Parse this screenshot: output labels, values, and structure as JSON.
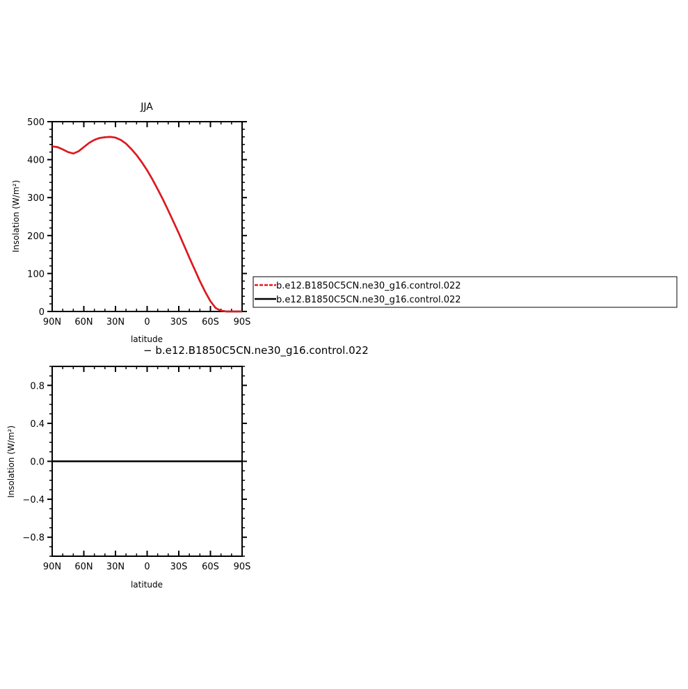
{
  "chart_data": [
    {
      "type": "line",
      "title": "JJA",
      "xlabel": "latitude",
      "ylabel": "Insolation (W/m²)",
      "x_tick_labels": [
        "90N",
        "60N",
        "30N",
        "0",
        "30S",
        "60S",
        "90S"
      ],
      "x_tick_values": [
        90,
        60,
        30,
        0,
        -30,
        -60,
        -90
      ],
      "xlim": [
        90,
        -90
      ],
      "ylim": [
        0,
        500
      ],
      "y_tick_labels": [
        "0",
        "100",
        "200",
        "300",
        "400",
        "500"
      ],
      "y_tick_values": [
        0,
        100,
        200,
        300,
        400,
        500
      ],
      "series": [
        {
          "name": "b.e12.B1850C5CN.ne30_g16.control.022",
          "color": "#e8161d",
          "style": "dashed",
          "x": [
            90,
            85,
            80,
            75,
            70,
            65,
            60,
            55,
            50,
            45,
            40,
            35,
            30,
            25,
            20,
            15,
            10,
            5,
            0,
            -5,
            -10,
            -15,
            -20,
            -25,
            -30,
            -35,
            -40,
            -45,
            -50,
            -55,
            -60,
            -65,
            -70,
            -75,
            -80,
            -85,
            -90
          ],
          "y": [
            435,
            433,
            427,
            420,
            416,
            422,
            433,
            444,
            452,
            457,
            459,
            460,
            458,
            452,
            442,
            428,
            412,
            393,
            372,
            348,
            322,
            295,
            266,
            236,
            206,
            174,
            142,
            111,
            80,
            52,
            27,
            9,
            2,
            0,
            0,
            0,
            0
          ]
        },
        {
          "name": "b.e12.B1850C5CN.ne30_g16.control.022",
          "color": "#000000",
          "style": "solid",
          "x": [
            90,
            85,
            80,
            75,
            70,
            65,
            60,
            55,
            50,
            45,
            40,
            35,
            30,
            25,
            20,
            15,
            10,
            5,
            0,
            -5,
            -10,
            -15,
            -20,
            -25,
            -30,
            -35,
            -40,
            -45,
            -50,
            -55,
            -60,
            -65,
            -70,
            -75,
            -80,
            -85,
            -90
          ],
          "y": [
            435,
            433,
            427,
            420,
            416,
            422,
            433,
            444,
            452,
            457,
            459,
            460,
            458,
            452,
            442,
            428,
            412,
            393,
            372,
            348,
            322,
            295,
            266,
            236,
            206,
            174,
            142,
            111,
            80,
            52,
            27,
            9,
            2,
            0,
            0,
            0,
            0
          ]
        }
      ],
      "legend": {
        "placement": "right",
        "entries": [
          {
            "label": "b.e12.B1850C5CN.ne30_g16.control.022",
            "color": "#e8161d",
            "style": "dashed"
          },
          {
            "label": "b.e12.B1850C5CN.ne30_g16.control.022",
            "color": "#000000",
            "style": "solid"
          }
        ]
      }
    },
    {
      "type": "line",
      "title": "− b.e12.B1850C5CN.ne30_g16.control.022",
      "xlabel": "latitude",
      "ylabel": "Insolation (W/m²)",
      "x_tick_labels": [
        "90N",
        "60N",
        "30N",
        "0",
        "30S",
        "60S",
        "90S"
      ],
      "x_tick_values": [
        90,
        60,
        30,
        0,
        -30,
        -60,
        -90
      ],
      "xlim": [
        90,
        -90
      ],
      "ylim": [
        -1,
        1
      ],
      "y_tick_labels": [
        "−0.8",
        "−0.4",
        "0.0",
        "0.4",
        "0.8"
      ],
      "y_tick_values": [
        -0.8,
        -0.4,
        0.0,
        0.4,
        0.8
      ],
      "series": [
        {
          "color": "#000000",
          "style": "solid",
          "x": [
            90,
            -90
          ],
          "y": [
            0,
            0
          ]
        }
      ]
    }
  ]
}
